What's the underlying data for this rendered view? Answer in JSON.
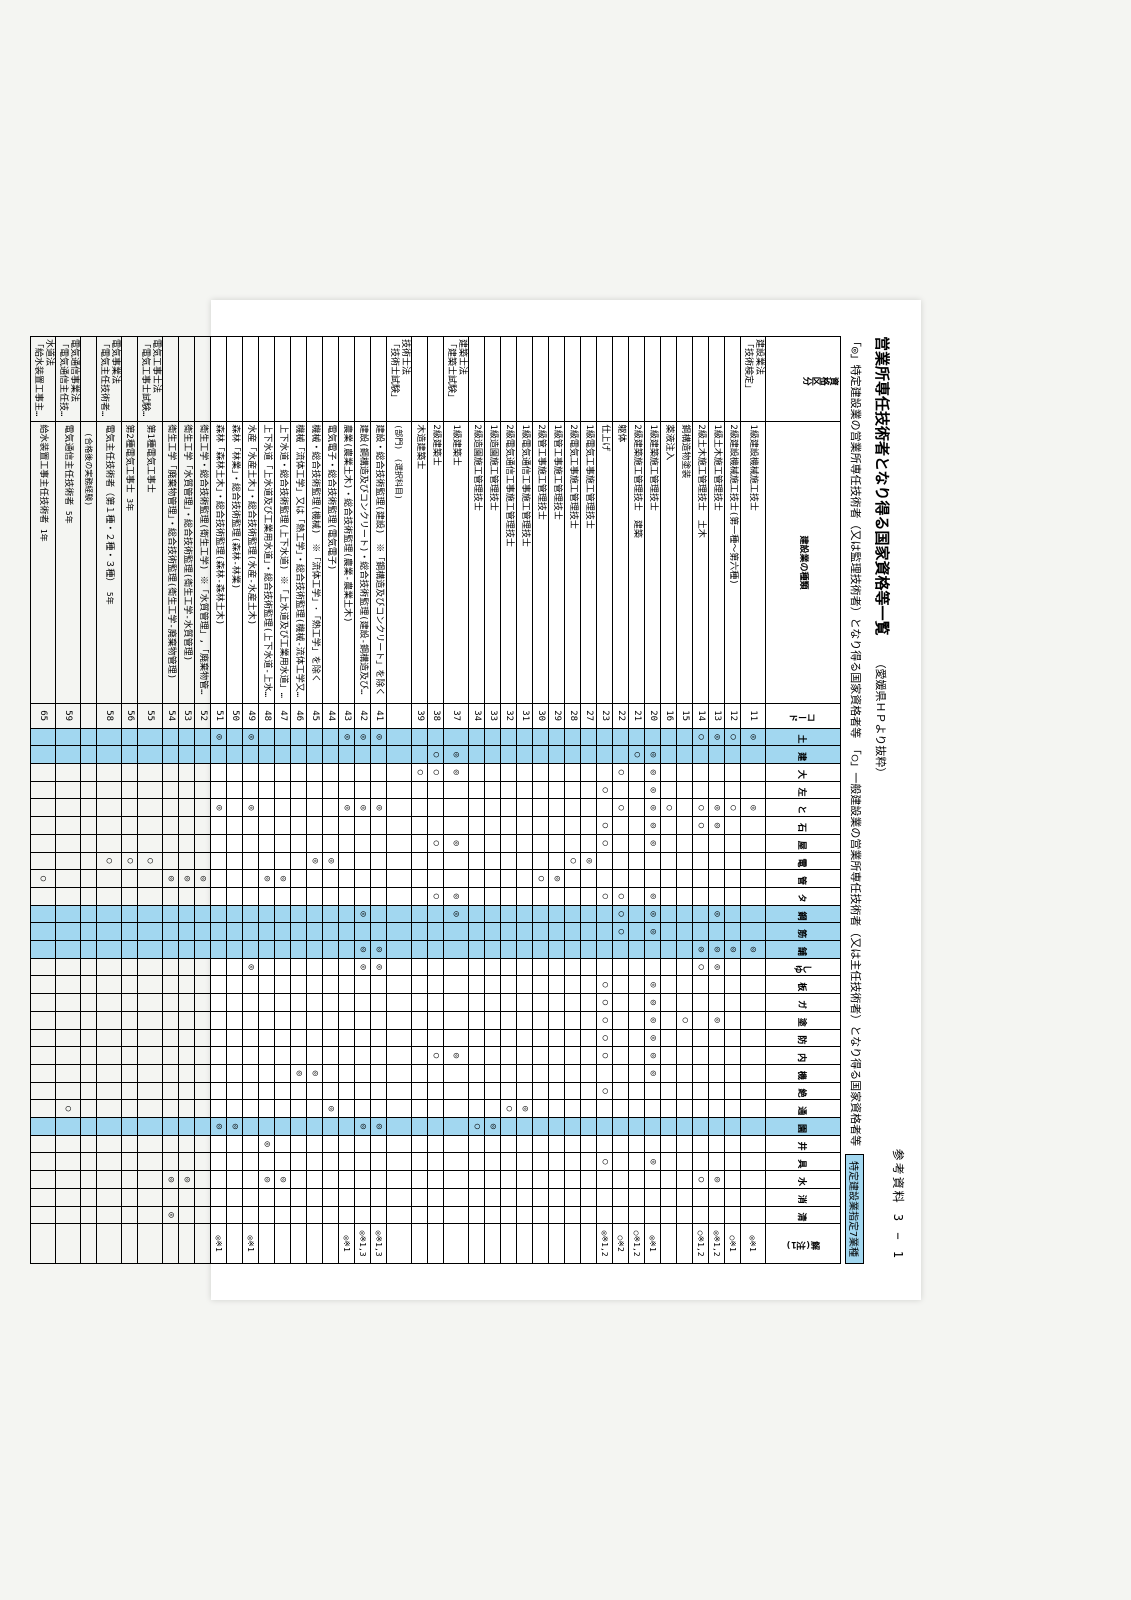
{
  "page_ref": "参考資料 3 − 1",
  "title": "営業所専任技術者となり得る国家資格等一覧",
  "title_note": "（愛媛県ＨＰより抜粋）",
  "legend_left": "「◎」特定建設業の営業所専任技術者（又は監理技術者）となり得る国家資格者等　「○」一般建設業の営業所専任技術者（又は主任技術者）となり得る国家資格者等",
  "legend_right": "特定建設業指定7業種",
  "hdr": {
    "cat": "資格区分",
    "kind": "建設業の種類",
    "code": "コード",
    "note": "解(注1)"
  },
  "cols": [
    "土",
    "建",
    "大",
    "左",
    "と",
    "石",
    "屋",
    "電",
    "管",
    "タ",
    "鋼",
    "筋",
    "舗",
    "しゆ",
    "板",
    "ガ",
    "塗",
    "防",
    "内",
    "機",
    "絶",
    "通",
    "園",
    "井",
    "具",
    "水",
    "消",
    "清"
  ],
  "blue_cols": [
    0,
    1,
    10,
    11,
    12,
    22
  ],
  "rows": [
    {
      "g": "建設業法\n「技術検定」",
      "n": "1級建設機械施工技士",
      "c": "11",
      "m": {
        "0": "◎",
        "4": "◎",
        "12": "◎"
      },
      "nt": "◎※1"
    },
    {
      "g": "",
      "n": "2級建設機械施工技士(第一種～第六種)",
      "c": "12",
      "m": {
        "0": "○",
        "4": "○",
        "12": "◎"
      },
      "nt": "○※1"
    },
    {
      "g": "",
      "n": "1級土木施工管理技士",
      "c": "13",
      "m": {
        "0": "◎",
        "4": "◎",
        "5": "◎",
        "10": "◎",
        "12": "◎",
        "13": "◎",
        "16": "◎",
        "25": "◎"
      },
      "nt": "◎※1,2"
    },
    {
      "g": "",
      "n": "2級土木施工管理技士",
      "sub": "種別",
      "sub2": "土木",
      "c": "14",
      "m": {
        "0": "○",
        "4": "○",
        "5": "○",
        "12": "◎",
        "13": "○",
        "25": "○"
      },
      "nt": "○※1,2"
    },
    {
      "g": "",
      "n": "",
      "sub": "",
      "sub2": "鋼構造物塗装",
      "c": "15",
      "m": {
        "16": "○"
      }
    },
    {
      "g": "",
      "n": "",
      "sub": "",
      "sub2": "薬液注入",
      "c": "16",
      "m": {
        "4": "○"
      }
    },
    {
      "g": "",
      "n": "1級建築施工管理技士",
      "c": "20",
      "m": {
        "1": "◎",
        "2": "◎",
        "3": "◎",
        "4": "◎",
        "5": "◎",
        "6": "◎",
        "9": "◎",
        "10": "◎",
        "11": "◎",
        "14": "◎",
        "15": "◎",
        "16": "◎",
        "17": "◎",
        "18": "◎",
        "19": "◎",
        "24": "◎"
      },
      "nt": "◎※1"
    },
    {
      "g": "",
      "n": "2級建築施工管理技士",
      "sub": "種別",
      "sub2": "建築",
      "c": "21",
      "m": {
        "1": "○"
      },
      "nt": "○※1,2"
    },
    {
      "g": "",
      "n": "",
      "sub": "",
      "sub2": "躯体",
      "c": "22",
      "m": {
        "2": "○",
        "4": "○",
        "9": "○",
        "10": "○",
        "11": "○"
      },
      "nt": "○※2"
    },
    {
      "g": "",
      "n": "",
      "sub": "",
      "sub2": "仕上げ",
      "c": "23",
      "m": {
        "3": "○",
        "5": "○",
        "6": "○",
        "9": "○",
        "14": "○",
        "15": "○",
        "16": "○",
        "17": "○",
        "18": "○",
        "20": "○",
        "24": "○"
      },
      "nt": "◎※1,2"
    },
    {
      "g": "",
      "n": "1級電気工事施工管理技士",
      "c": "27",
      "m": {
        "7": "◎"
      }
    },
    {
      "g": "",
      "n": "2級電気工事施工管理技士",
      "c": "28",
      "m": {
        "7": "○"
      }
    },
    {
      "g": "",
      "n": "1級管工事施工管理技士",
      "c": "29",
      "m": {
        "8": "◎"
      }
    },
    {
      "g": "",
      "n": "2級管工事施工管理技士",
      "c": "30",
      "m": {
        "8": "○"
      }
    },
    {
      "g": "",
      "n": "1級電気通信工事施工管理技士",
      "c": "31",
      "m": {
        "21": "◎"
      }
    },
    {
      "g": "",
      "n": "2級電気通信工事施工管理技士",
      "c": "32",
      "m": {
        "21": "○"
      }
    },
    {
      "g": "",
      "n": "1級造園施工管理技士",
      "c": "33",
      "m": {
        "22": "◎"
      }
    },
    {
      "g": "",
      "n": "2級造園施工管理技士",
      "c": "34",
      "m": {
        "22": "○"
      }
    },
    {
      "g": "建築士法\n「建築士試験」",
      "n": "1級建築士",
      "c": "37",
      "m": {
        "1": "◎",
        "2": "◎",
        "6": "◎",
        "9": "◎",
        "10": "◎",
        "18": "◎"
      }
    },
    {
      "g": "",
      "n": "2級建築士",
      "c": "38",
      "m": {
        "1": "○",
        "2": "○",
        "6": "○",
        "9": "○",
        "18": "○"
      }
    },
    {
      "g": "",
      "n": "木造建築士",
      "c": "39",
      "m": {
        "2": "○"
      }
    },
    {
      "g": "技術士法\n「技術士試験」",
      "n": "(部門)　(選択科目)",
      "c": "",
      "m": {},
      "ns": true
    },
    {
      "g": "",
      "n": "建設・総合技術監理(建設)　※「鋼構造及びコンクリート」を除く",
      "c": "41",
      "m": {
        "0": "◎",
        "4": "◎",
        "12": "◎",
        "13": "◎",
        "22": "◎"
      },
      "nt": "◎※1,3"
    },
    {
      "g": "",
      "n": "建設(鋼構造及びコンクリート)・総合技術監理(建設-鋼構造及びコンクリート)",
      "c": "42",
      "m": {
        "0": "◎",
        "4": "◎",
        "10": "◎",
        "12": "◎",
        "13": "◎",
        "22": "◎"
      },
      "nt": "◎※1,3"
    },
    {
      "g": "",
      "n": "農業(農業土木)・総合技術監理(農業-農業土木)",
      "c": "43",
      "m": {
        "0": "◎",
        "4": "◎"
      },
      "nt": "◎※1"
    },
    {
      "g": "",
      "n": "電気電子・総合技術監理(電気電子)",
      "c": "44",
      "m": {
        "7": "◎",
        "21": "◎"
      }
    },
    {
      "g": "",
      "n": "機械・総合技術監理(機械)　※「流体工学」･「熱工学」を除く",
      "c": "45",
      "m": {
        "7": "◎",
        "19": "◎"
      }
    },
    {
      "g": "",
      "n": "機械「流体工学」又は「熱工学」・総合技術監理(機械-流体工学又は熱工学)",
      "c": "46",
      "m": {
        "19": "◎"
      }
    },
    {
      "g": "",
      "n": "上下水道・総合技術監理(上下水道) ※「上水道及び工業用水道」を除く",
      "c": "47",
      "m": {
        "8": "◎",
        "25": "◎"
      }
    },
    {
      "g": "",
      "n": "上下水道「上水道及び工業用水道」・総合技術監理(上下水道-上水道及び工業用水道)",
      "c": "48",
      "m": {
        "8": "◎",
        "23": "◎",
        "25": "◎"
      }
    },
    {
      "g": "",
      "n": "水産「水産土木」・総合技術監理(水産-水産土木)",
      "c": "49",
      "m": {
        "0": "◎",
        "4": "◎",
        "13": "◎"
      },
      "nt": "◎※1"
    },
    {
      "g": "",
      "n": "森林「林業」・総合技術監理(森林-林業)",
      "c": "50",
      "m": {
        "22": "◎"
      }
    },
    {
      "g": "",
      "n": "森林「森林土木」・総合技術監理(森林-森林土木)",
      "c": "51",
      "m": {
        "0": "◎",
        "4": "◎",
        "22": "◎"
      },
      "nt": "◎※1"
    },
    {
      "g": "",
      "n": "衛生工学・総合技術監理(衛生工学) ※「水質管理」,「廃棄物管理」を除く",
      "c": "52",
      "m": {
        "8": "◎"
      }
    },
    {
      "g": "",
      "n": "衛生工学「水質管理」・総合技術監理(衛生工学-水質管理)",
      "c": "53",
      "m": {
        "8": "◎",
        "25": "◎"
      }
    },
    {
      "g": "",
      "n": "衛生工学「廃棄物管理」・総合技術監理(衛生工学-廃棄物管理)",
      "c": "54",
      "m": {
        "8": "◎",
        "25": "◎",
        "27": "◎"
      }
    },
    {
      "g": "電気工事士法\n「電気工事士試験」",
      "n": "第1種電気工事士",
      "c": "55",
      "m": {
        "7": "○"
      }
    },
    {
      "g": "",
      "n": "第2種電気工事士",
      "c": "56",
      "p": "3年",
      "m": {
        "7": "○"
      }
    },
    {
      "g": "電気事業法\n「電気主任技術者国家試験等」",
      "n": "電気主任技術者（第１種・２種・３種）",
      "c": "58",
      "p": "5年",
      "m": {
        "7": "○"
      }
    },
    {
      "g": "",
      "n": "　(合格後の実務経験)",
      "c": "",
      "ns": true
    },
    {
      "g": "電気通信事業法\n「電気通信主任技術者試験」",
      "n": "電気通信主任技術者",
      "c": "59",
      "p": "5年",
      "m": {
        "21": "○"
      }
    },
    {
      "g": "水道法\n「給水装置工事主任技術者試験」",
      "n": "給水装置工事主任技術者",
      "c": "65",
      "p": "1年",
      "m": {
        "8": "○"
      }
    }
  ]
}
